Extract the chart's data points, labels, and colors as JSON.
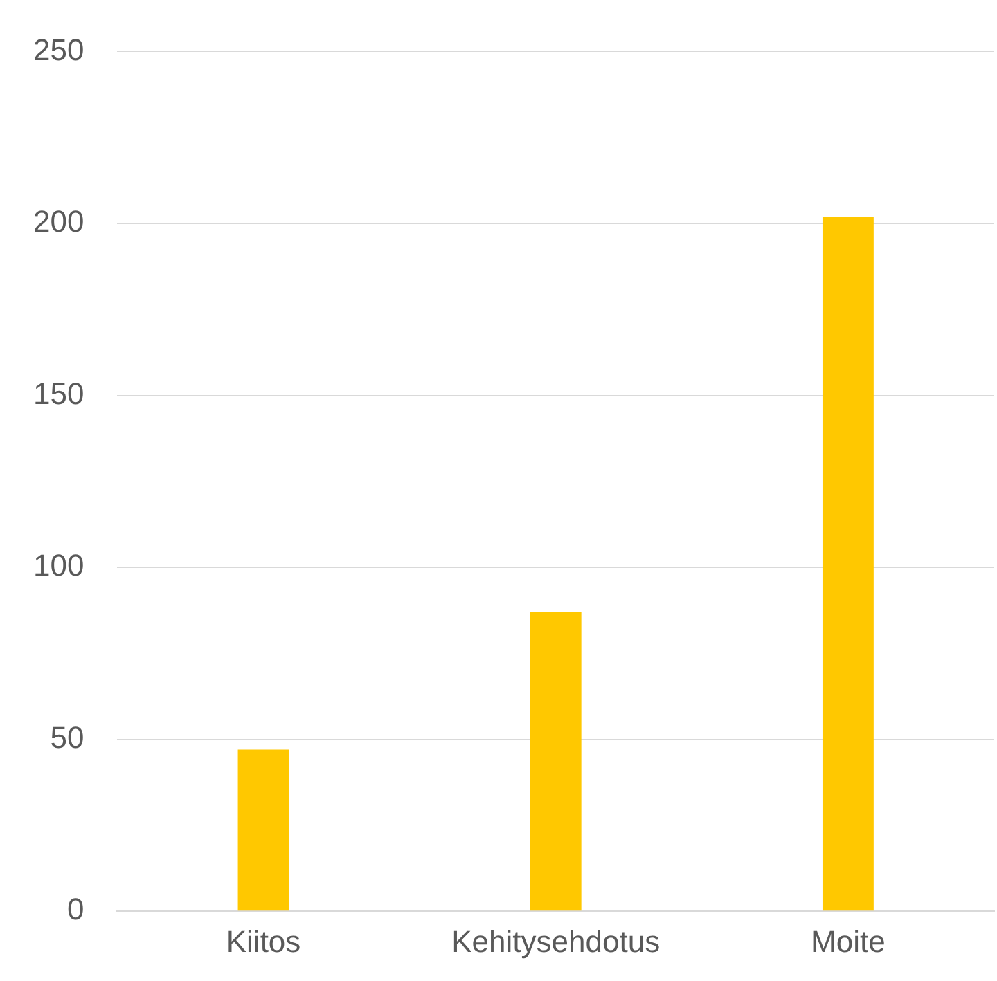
{
  "chart_data": {
    "type": "bar",
    "categories": [
      "Kiitos",
      "Kehitysehdotus",
      "Moite"
    ],
    "values": [
      47,
      87,
      202
    ],
    "color": "#ffc800",
    "ylim": [
      0,
      250
    ],
    "yticks": [
      0,
      50,
      100,
      150,
      200,
      250
    ],
    "grid": "y"
  }
}
